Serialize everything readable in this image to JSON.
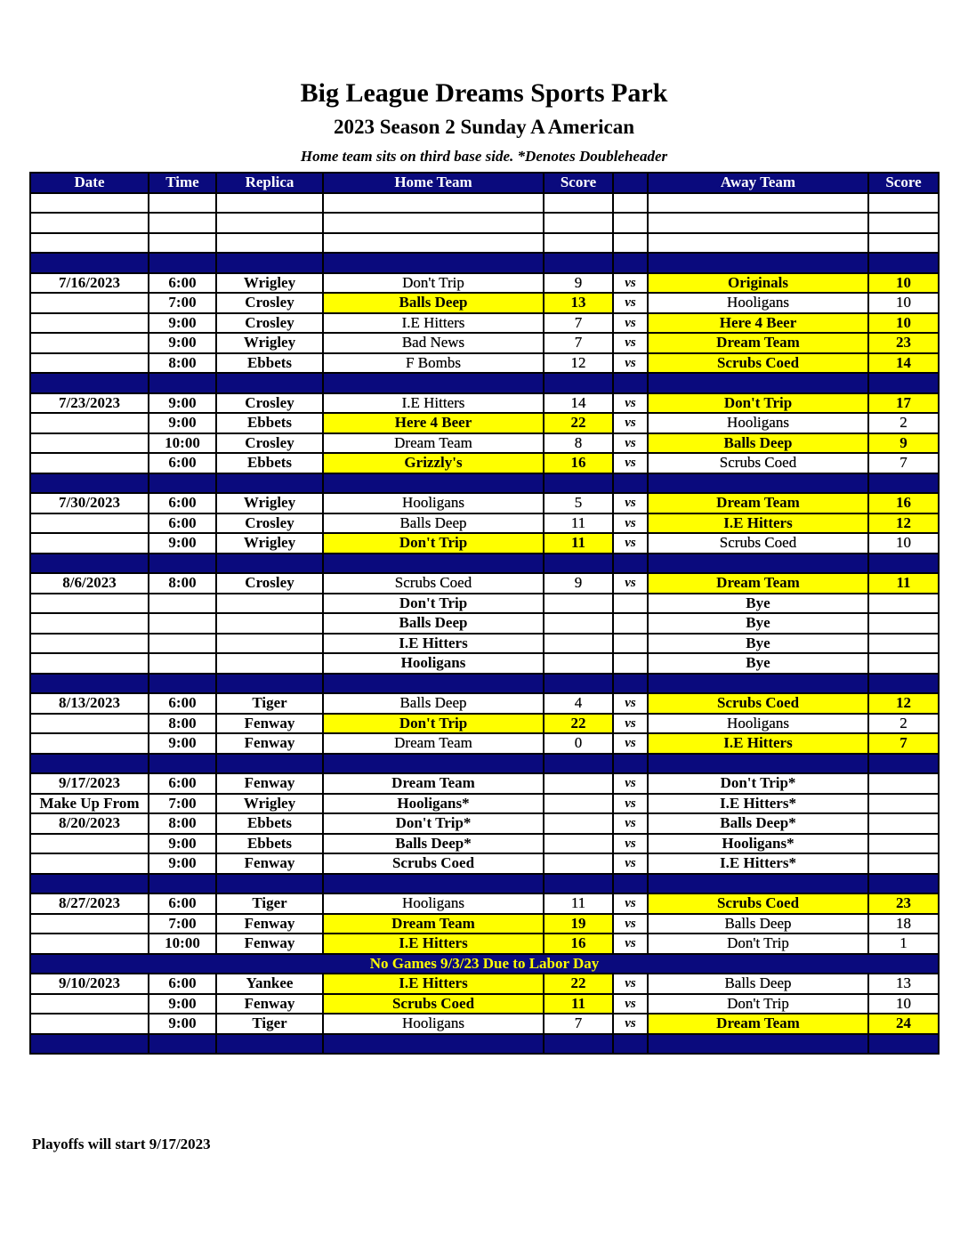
{
  "title": "Big League Dreams Sports Park",
  "subtitle": "2023 Season 2 Sunday A American",
  "note": "Home team sits on third base side.  *Denotes Doubleheader",
  "headers": [
    "Date",
    "Time",
    "Replica",
    "Home Team",
    "Score",
    "",
    "Away Team",
    "Score"
  ],
  "colors": {
    "header": "#0a0a7d",
    "highlight": "#ffff00"
  },
  "rows": [
    {
      "type": "blank"
    },
    {
      "type": "blank"
    },
    {
      "type": "blank"
    },
    {
      "type": "sep"
    },
    {
      "cells": [
        "7/16/2023",
        "6:00",
        "Wrigley",
        "Don't Trip",
        "9",
        "vs",
        "Originals",
        "10"
      ],
      "winner": "away"
    },
    {
      "cells": [
        "",
        "7:00",
        "Crosley",
        "Balls Deep",
        "13",
        "vs",
        "Hooligans",
        "10"
      ],
      "winner": "home"
    },
    {
      "cells": [
        "",
        "9:00",
        "Crosley",
        "I.E Hitters",
        "7",
        "vs",
        "Here 4 Beer",
        "10"
      ],
      "winner": "away"
    },
    {
      "cells": [
        "",
        "9:00",
        "Wrigley",
        "Bad News",
        "7",
        "vs",
        "Dream Team",
        "23"
      ],
      "winner": "away"
    },
    {
      "cells": [
        "",
        "8:00",
        "Ebbets",
        "F Bombs",
        "12",
        "vs",
        "Scrubs Coed",
        "14"
      ],
      "winner": "away"
    },
    {
      "type": "sep"
    },
    {
      "cells": [
        "7/23/2023",
        "9:00",
        "Crosley",
        "I.E Hitters",
        "14",
        "vs",
        "Don't Trip",
        "17"
      ],
      "winner": "away"
    },
    {
      "cells": [
        "",
        "9:00",
        "Ebbets",
        "Here 4 Beer",
        "22",
        "vs",
        "Hooligans",
        "2"
      ],
      "winner": "home"
    },
    {
      "cells": [
        "",
        "10:00",
        "Crosley",
        "Dream Team",
        "8",
        "vs",
        "Balls Deep",
        "9"
      ],
      "winner": "away"
    },
    {
      "cells": [
        "",
        "6:00",
        "Ebbets",
        "Grizzly's",
        "16",
        "vs",
        "Scrubs Coed",
        "7"
      ],
      "winner": "home"
    },
    {
      "type": "sep"
    },
    {
      "cells": [
        "7/30/2023",
        "6:00",
        "Wrigley",
        "Hooligans",
        "5",
        "vs",
        "Dream Team",
        "16"
      ],
      "winner": "away"
    },
    {
      "cells": [
        "",
        "6:00",
        "Crosley",
        "Balls Deep",
        "11",
        "vs",
        "I.E Hitters",
        "12"
      ],
      "winner": "away"
    },
    {
      "cells": [
        "",
        "9:00",
        "Wrigley",
        "Don't Trip",
        "11",
        "vs",
        "Scrubs Coed",
        "10"
      ],
      "winner": "home"
    },
    {
      "type": "sep"
    },
    {
      "cells": [
        "8/6/2023",
        "8:00",
        "Crosley",
        "Scrubs Coed",
        "9",
        "vs",
        "Dream Team",
        "11"
      ],
      "winner": "away"
    },
    {
      "cells": [
        "",
        "",
        "",
        "Don't Trip",
        "",
        "",
        "Bye",
        ""
      ],
      "bold": true
    },
    {
      "cells": [
        "",
        "",
        "",
        "Balls Deep",
        "",
        "",
        "Bye",
        ""
      ],
      "bold": true
    },
    {
      "cells": [
        "",
        "",
        "",
        "I.E Hitters",
        "",
        "",
        "Bye",
        ""
      ],
      "bold": true
    },
    {
      "cells": [
        "",
        "",
        "",
        "Hooligans",
        "",
        "",
        "Bye",
        ""
      ],
      "bold": true
    },
    {
      "type": "sep"
    },
    {
      "cells": [
        "8/13/2023",
        "6:00",
        "Tiger",
        "Balls Deep",
        "4",
        "vs",
        "Scrubs Coed",
        "12"
      ],
      "winner": "away"
    },
    {
      "cells": [
        "",
        "8:00",
        "Fenway",
        "Don't Trip",
        "22",
        "vs",
        "Hooligans",
        "2"
      ],
      "winner": "home"
    },
    {
      "cells": [
        "",
        "9:00",
        "Fenway",
        "Dream Team",
        "0",
        "vs",
        "I.E Hitters",
        "7"
      ],
      "winner": "away"
    },
    {
      "type": "sep"
    },
    {
      "cells": [
        "9/17/2023",
        "6:00",
        "Fenway",
        "Dream Team",
        "",
        "vs",
        "Don't Trip*",
        ""
      ],
      "bold": true
    },
    {
      "cells": [
        "Make Up From",
        "7:00",
        "Wrigley",
        "Hooligans*",
        "",
        "vs",
        "I.E Hitters*",
        ""
      ],
      "bold": true
    },
    {
      "cells": [
        "8/20/2023",
        "8:00",
        "Ebbets",
        "Don't Trip*",
        "",
        "vs",
        "Balls Deep*",
        ""
      ],
      "bold": true
    },
    {
      "cells": [
        "",
        "9:00",
        "Ebbets",
        "Balls Deep*",
        "",
        "vs",
        "Hooligans*",
        ""
      ],
      "bold": true
    },
    {
      "cells": [
        "",
        "9:00",
        "Fenway",
        "Scrubs Coed",
        "",
        "vs",
        "I.E Hitters*",
        ""
      ],
      "bold": true
    },
    {
      "type": "sep"
    },
    {
      "cells": [
        "8/27/2023",
        "6:00",
        "Tiger",
        "Hooligans",
        "11",
        "vs",
        "Scrubs Coed",
        "23"
      ],
      "winner": "away"
    },
    {
      "cells": [
        "",
        "7:00",
        "Fenway",
        "Dream Team",
        "19",
        "vs",
        "Balls Deep",
        "18"
      ],
      "winner": "home"
    },
    {
      "cells": [
        "",
        "10:00",
        "Fenway",
        "I.E Hitters",
        "16",
        "vs",
        "Don't Trip",
        "1"
      ],
      "winner": "home"
    },
    {
      "type": "notice",
      "text": "No Games 9/3/23 Due to Labor Day"
    },
    {
      "cells": [
        "9/10/2023",
        "6:00",
        "Yankee",
        "I.E Hitters",
        "22",
        "vs",
        "Balls Deep",
        "13"
      ],
      "winner": "home"
    },
    {
      "cells": [
        "",
        "9:00",
        "Fenway",
        "Scrubs Coed",
        "11",
        "vs",
        "Don't Trip",
        "10"
      ],
      "winner": "home"
    },
    {
      "cells": [
        "",
        "9:00",
        "Tiger",
        "Hooligans",
        "7",
        "vs",
        "Dream Team",
        "24"
      ],
      "winner": "away"
    },
    {
      "type": "sep"
    }
  ],
  "footer": "Playoffs will start 9/17/2023"
}
